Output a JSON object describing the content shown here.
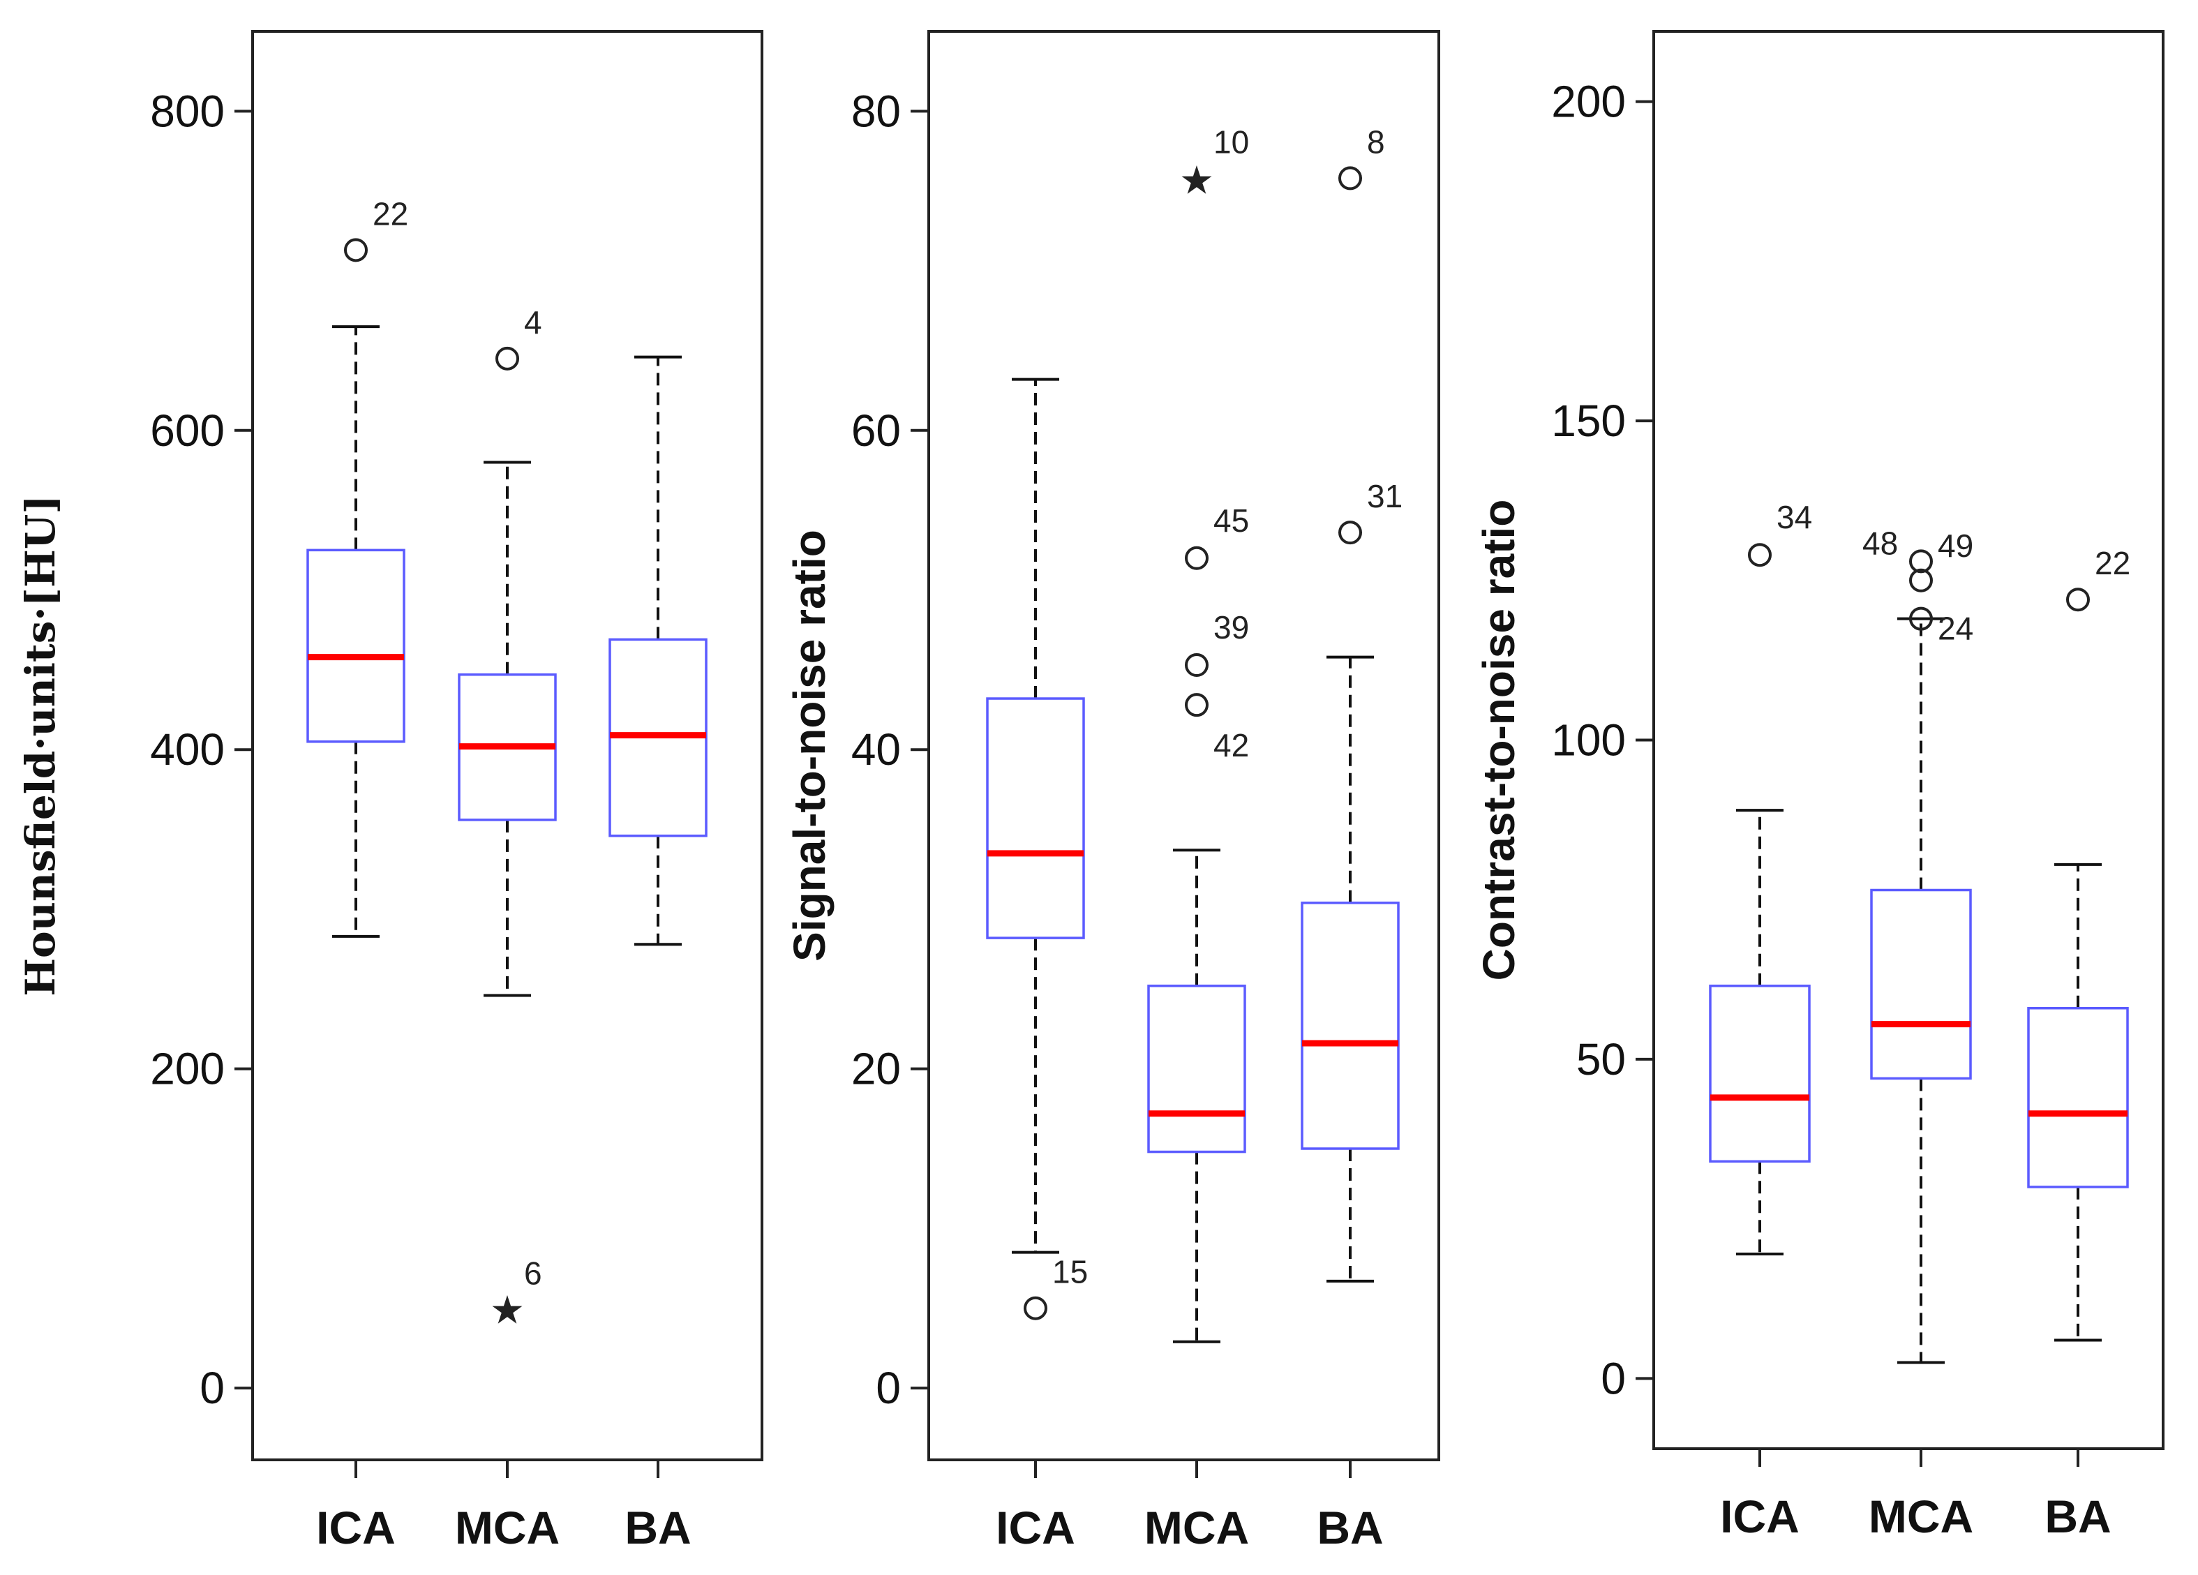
{
  "chart_data": [
    {
      "type": "boxplot",
      "ylabel": "Hounsfield·units·[HU]",
      "ylim": [
        -45,
        850
      ],
      "yticks": [
        0,
        200,
        400,
        600,
        800
      ],
      "categories": [
        "ICA",
        "MCA",
        "BA"
      ],
      "boxes": [
        {
          "category": "ICA",
          "whisker_low": 283,
          "q1": 405,
          "median": 458,
          "q3": 525,
          "whisker_high": 665,
          "outliers": [
            {
              "value": 713,
              "label": "22",
              "marker": "circle"
            }
          ]
        },
        {
          "category": "MCA",
          "whisker_low": 246,
          "q1": 356,
          "median": 402,
          "q3": 447,
          "whisker_high": 580,
          "outliers": [
            {
              "value": 645,
              "label": "4",
              "marker": "circle"
            },
            {
              "value": 50,
              "label": "6",
              "marker": "star"
            }
          ]
        },
        {
          "category": "BA",
          "whisker_low": 278,
          "q1": 346,
          "median": 409,
          "q3": 469,
          "whisker_high": 646,
          "outliers": []
        }
      ]
    },
    {
      "type": "boxplot",
      "ylabel": "Signal-to-noise ratio",
      "ylim": [
        -4.5,
        85
      ],
      "yticks": [
        0,
        20,
        40,
        60,
        80
      ],
      "categories": [
        "ICA",
        "MCA",
        "BA"
      ],
      "boxes": [
        {
          "category": "ICA",
          "whisker_low": 8.5,
          "q1": 28.2,
          "median": 33.5,
          "q3": 43.2,
          "whisker_high": 63.2,
          "outliers": [
            {
              "value": 5,
              "label": "15",
              "marker": "circle"
            }
          ]
        },
        {
          "category": "MCA",
          "whisker_low": 2.9,
          "q1": 14.8,
          "median": 17.2,
          "q3": 25.2,
          "whisker_high": 33.7,
          "outliers": [
            {
              "value": 75.8,
              "label": "10",
              "marker": "star"
            },
            {
              "value": 52,
              "label": "45",
              "marker": "circle"
            },
            {
              "value": 45.3,
              "label": "39",
              "marker": "circle"
            },
            {
              "value": 42.8,
              "label": "42",
              "marker": "circle"
            }
          ]
        },
        {
          "category": "BA",
          "whisker_low": 6.7,
          "q1": 15,
          "median": 21.6,
          "q3": 30.4,
          "whisker_high": 45.8,
          "outliers": [
            {
              "value": 75.8,
              "label": "8",
              "marker": "circle"
            },
            {
              "value": 53.6,
              "label": "31",
              "marker": "circle"
            }
          ]
        }
      ]
    },
    {
      "type": "boxplot",
      "ylabel": "Contrast-to-noise ratio",
      "ylim": [
        -11,
        211
      ],
      "yticks": [
        0,
        50,
        100,
        150,
        200
      ],
      "categories": [
        "ICA",
        "MCA",
        "BA"
      ],
      "boxes": [
        {
          "category": "ICA",
          "whisker_low": 19.5,
          "q1": 34,
          "median": 44,
          "q3": 61.5,
          "whisker_high": 89,
          "outliers": [
            {
              "value": 129,
              "label": "34",
              "marker": "circle"
            }
          ]
        },
        {
          "category": "MCA",
          "whisker_low": 2.5,
          "q1": 47,
          "median": 55.5,
          "q3": 76.5,
          "whisker_high": 119,
          "outliers": [
            {
              "value": 128,
              "label": "48",
              "marker": "circle"
            },
            {
              "value": 125,
              "label": "49",
              "marker": "circle"
            },
            {
              "value": 119,
              "label": "24",
              "marker": "circle"
            }
          ]
        },
        {
          "category": "BA",
          "whisker_low": 6,
          "q1": 30,
          "median": 41.5,
          "q3": 58,
          "whisker_high": 80.5,
          "outliers": [
            {
              "value": 122,
              "label": "22",
              "marker": "circle"
            }
          ]
        }
      ]
    }
  ],
  "colors": {
    "box": "#5b5bff",
    "median": "#ff0000",
    "whisker": "#111111",
    "axis": "#222222",
    "outlier": "#222222"
  }
}
